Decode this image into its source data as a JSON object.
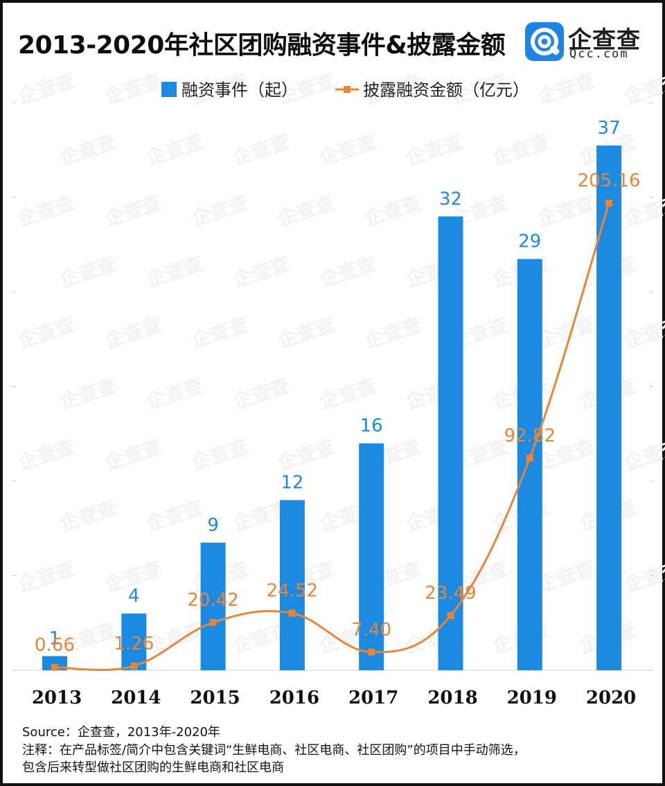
{
  "title": "2013-2020年社区团购融资事件&披露金额",
  "logo": {
    "name": "企查查",
    "domain": "Qcc.com"
  },
  "chart_data": {
    "type": "bar+line",
    "categories": [
      "2013",
      "2014",
      "2015",
      "2016",
      "2017",
      "2018",
      "2019",
      "2020"
    ],
    "series": [
      {
        "name": "融资事件（起）",
        "type": "bar",
        "color": "#1b8ae0",
        "values": [
          1,
          4,
          9,
          12,
          16,
          32,
          29,
          37
        ],
        "labels": [
          "1",
          "4",
          "9",
          "12",
          "16",
          "32",
          "29",
          "37"
        ]
      },
      {
        "name": "披露融资金额（亿元）",
        "type": "line",
        "color": "#e8853a",
        "values": [
          0.66,
          1.26,
          20.42,
          24.52,
          7.4,
          23.49,
          92.82,
          205.16
        ],
        "labels": [
          "0.66",
          "1.26",
          "20.42",
          "24.52",
          "7.40",
          "23.49",
          "92.82",
          "205.16"
        ]
      }
    ],
    "ylim_bar": [
      0,
      37
    ],
    "ylim_line": [
      0,
      205.16
    ],
    "legend_position": "top-center",
    "grid": false
  },
  "footer": {
    "source": "Source：企查查，2013年-2020年",
    "note_line1": "注释：在产品标签/简介中包含关键词“生鲜电商、社区电商、社区团购”的项目中手动筛选，",
    "note_line2": "包含后来转型做社区团购的生鲜电商和社区电商"
  }
}
